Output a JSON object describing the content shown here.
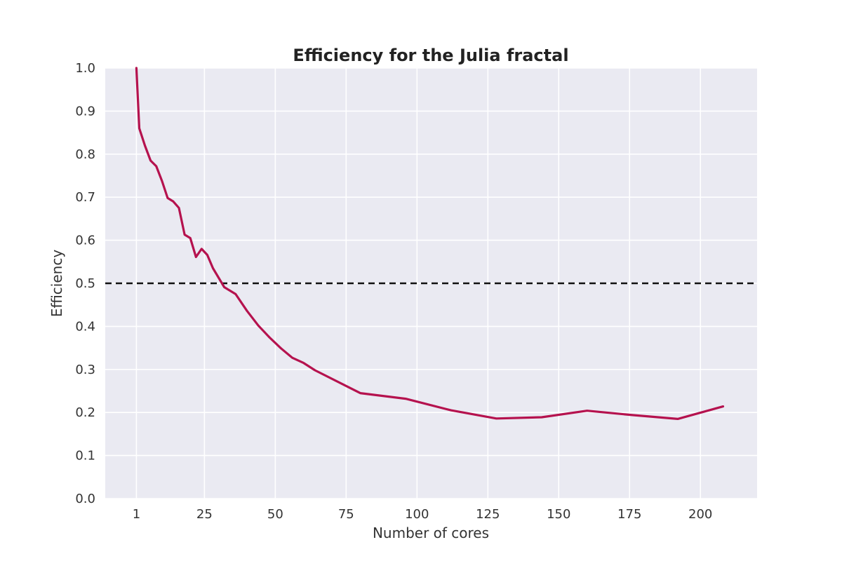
{
  "chart_data": {
    "type": "line",
    "title": "Efficiency for the Julia fractal",
    "xlabel": "Number of cores",
    "ylabel": "Efficiency",
    "xlim": [
      -10,
      220
    ],
    "ylim": [
      0.0,
      1.0
    ],
    "grid": true,
    "x_ticks": [
      1,
      25,
      50,
      75,
      100,
      125,
      150,
      175,
      200
    ],
    "y_ticks": [
      0.0,
      0.1,
      0.2,
      0.3,
      0.4,
      0.5,
      0.6,
      0.7,
      0.8,
      0.9,
      1.0
    ],
    "y_tick_labels": [
      "0.0",
      "0.1",
      "0.2",
      "0.3",
      "0.4",
      "0.5",
      "0.6",
      "0.7",
      "0.8",
      "0.9",
      "1.0"
    ],
    "reference_line": {
      "y": 0.5,
      "style": "dashed",
      "color": "#111111"
    },
    "series": [
      {
        "color": "#b5124e",
        "x": [
          1,
          2,
          4,
          6,
          8,
          10,
          12,
          14,
          16,
          18,
          20,
          22,
          24,
          26,
          28,
          32,
          36,
          40,
          44,
          48,
          52,
          56,
          60,
          64,
          80,
          96,
          112,
          128,
          144,
          160,
          176,
          192,
          208
        ],
        "y": [
          1.0,
          0.86,
          0.82,
          0.785,
          0.772,
          0.738,
          0.698,
          0.69,
          0.675,
          0.613,
          0.605,
          0.561,
          0.58,
          0.566,
          0.535,
          0.491,
          0.475,
          0.436,
          0.402,
          0.374,
          0.349,
          0.327,
          0.315,
          0.298,
          0.245,
          0.232,
          0.205,
          0.186,
          0.189,
          0.204,
          0.194,
          0.185,
          0.214
        ]
      }
    ]
  }
}
